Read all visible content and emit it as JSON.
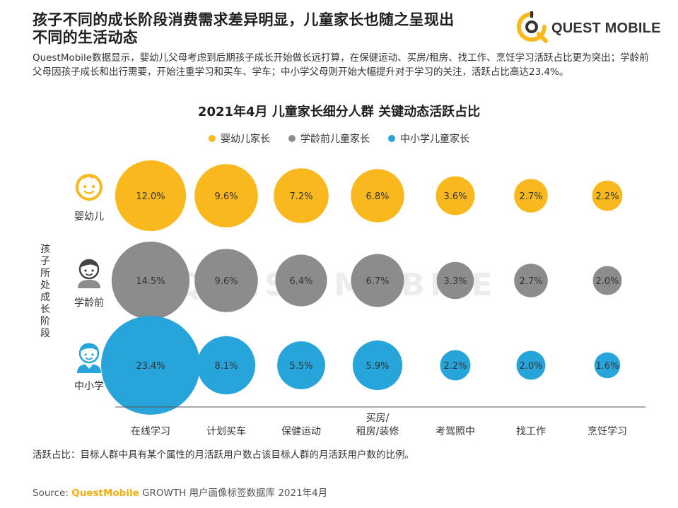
{
  "header": {
    "headline_line1": "孩子不同的成长阶段消费需求差异明显，儿童家长也随之呈现出",
    "headline_line2": "不同的生活动态",
    "logo_text": "QUEST MOBILE",
    "description": "QuestMobile数据显示，婴幼儿父母考虑到后期孩子成长开始做长远打算，在保健运动、买房/租房、找工作、烹饪学习活跃占比更为突出；学龄前父母因孩子成长和出行需要，开始注重学习和买车、学车；中小学父母则开始大幅提升对于学习的关注，活跃占比高达23.4%。"
  },
  "watermark": "QUEST MOBILE",
  "y_axis_title": "孩子所处成长阶段",
  "footnote": "活跃占比：目标人群中具有某个属性的月活跃用户数占该目标人群的月活跃用户数的比例。",
  "source": {
    "prefix": "Source:",
    "brand": "QuestMobile",
    "rest": " GROWTH 用户画像标签数据库 2021年4月"
  },
  "chart_data": {
    "type": "bubble",
    "title": "2021年4月 儿童家长细分人群 关键动态活跃占比",
    "categories": [
      "在线学习",
      "计划买车",
      "保健运动",
      "买房/\n租房/装修",
      "考驾照中",
      "找工作",
      "烹饪学习"
    ],
    "series": [
      {
        "name": "婴幼儿家长",
        "row_label": "婴幼儿",
        "icon": "baby-face-icon",
        "color": "#F9B91E",
        "values": [
          12.0,
          9.6,
          7.2,
          6.8,
          3.6,
          2.7,
          2.2
        ]
      },
      {
        "name": "学龄前儿童家长",
        "row_label": "学龄前",
        "icon": "preschool-child-icon",
        "color": "#8C8C8C",
        "values": [
          14.5,
          9.6,
          6.4,
          6.7,
          3.3,
          2.7,
          2.0
        ]
      },
      {
        "name": "中小学儿童家长",
        "row_label": "中小学",
        "icon": "school-child-icon",
        "color": "#27A4DA",
        "values": [
          23.4,
          8.1,
          5.5,
          5.9,
          2.2,
          2.0,
          1.6
        ]
      }
    ],
    "value_format": "percent_one_decimal",
    "legend_position": "top-center",
    "grid": false
  }
}
